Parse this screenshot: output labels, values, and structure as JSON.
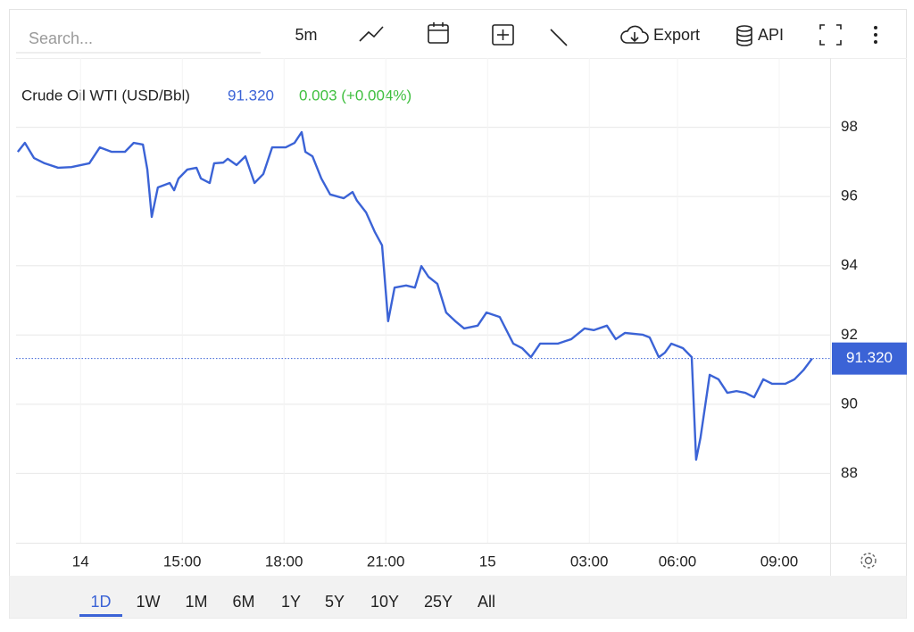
{
  "toolbar": {
    "search_placeholder": "Search...",
    "interval": "5m",
    "export": "Export",
    "api": "API"
  },
  "range_tabs": {
    "items": [
      "1D",
      "1W",
      "1M",
      "6M",
      "1Y",
      "5Y",
      "10Y",
      "25Y",
      "All"
    ],
    "selected": "1D"
  },
  "chart_data": {
    "type": "line",
    "title": "Crude Oil WTI (USD/Bbl)",
    "last": {
      "value": 91.32,
      "label": "91.320"
    },
    "change": "0.003 (+0.004%)",
    "xlim": [
      0,
      24
    ],
    "xticks": [
      {
        "value": 1.9,
        "label": "14"
      },
      {
        "value": 4.9,
        "label": "15:00"
      },
      {
        "value": 7.9,
        "label": "18:00"
      },
      {
        "value": 10.9,
        "label": "21:00"
      },
      {
        "value": 13.9,
        "label": "15"
      },
      {
        "value": 16.9,
        "label": "03:00"
      },
      {
        "value": 19.5,
        "label": "06:00"
      },
      {
        "value": 22.5,
        "label": "09:00"
      }
    ],
    "ylim": [
      86,
      100
    ],
    "yticks": [
      88,
      90,
      92,
      94,
      96,
      98
    ],
    "grid": true,
    "series": [
      {
        "name": "Crude Oil WTI",
        "color": "#3b63d6",
        "x": [
          0.05,
          0.26,
          0.53,
          0.84,
          1.24,
          1.63,
          2.16,
          2.47,
          2.82,
          3.21,
          3.47,
          3.74,
          3.87,
          4.0,
          4.18,
          4.53,
          4.66,
          4.79,
          5.05,
          5.32,
          5.45,
          5.71,
          5.84,
          6.11,
          6.24,
          6.5,
          6.76,
          7.03,
          7.29,
          7.55,
          7.95,
          8.21,
          8.42,
          8.53,
          8.74,
          9.0,
          9.26,
          9.66,
          9.92,
          10.05,
          10.32,
          10.58,
          10.79,
          10.97,
          11.16,
          11.5,
          11.76,
          11.95,
          12.16,
          12.42,
          12.68,
          12.95,
          13.21,
          13.61,
          13.87,
          14.26,
          14.66,
          14.92,
          15.18,
          15.45,
          15.71,
          15.97,
          16.37,
          16.76,
          17.03,
          17.42,
          17.68,
          17.95,
          18.47,
          18.68,
          18.95,
          19.13,
          19.32,
          19.66,
          19.92,
          20.05,
          20.18,
          20.45,
          20.71,
          20.97,
          21.24,
          21.5,
          21.76,
          22.03,
          22.29,
          22.68,
          22.95,
          23.21,
          23.47
        ],
        "values": [
          97.29,
          97.55,
          97.11,
          96.96,
          96.83,
          96.85,
          96.96,
          97.42,
          97.29,
          97.29,
          97.55,
          97.5,
          96.78,
          95.41,
          96.26,
          96.39,
          96.18,
          96.52,
          96.78,
          96.83,
          96.52,
          96.39,
          96.96,
          96.98,
          97.09,
          96.91,
          97.16,
          96.39,
          96.65,
          97.42,
          97.42,
          97.55,
          97.86,
          97.29,
          97.16,
          96.52,
          96.06,
          95.95,
          96.13,
          95.88,
          95.54,
          94.97,
          94.59,
          92.4,
          93.37,
          93.43,
          93.37,
          93.99,
          93.68,
          93.48,
          92.65,
          92.4,
          92.19,
          92.27,
          92.65,
          92.52,
          91.75,
          91.62,
          91.36,
          91.75,
          91.75,
          91.75,
          91.88,
          92.19,
          92.14,
          92.27,
          91.88,
          92.06,
          92.01,
          91.93,
          91.36,
          91.49,
          91.75,
          91.62,
          91.36,
          88.4,
          89.04,
          90.85,
          90.72,
          90.33,
          90.38,
          90.33,
          90.2,
          90.72,
          90.59,
          90.59,
          90.72,
          90.98,
          91.32
        ]
      }
    ]
  }
}
